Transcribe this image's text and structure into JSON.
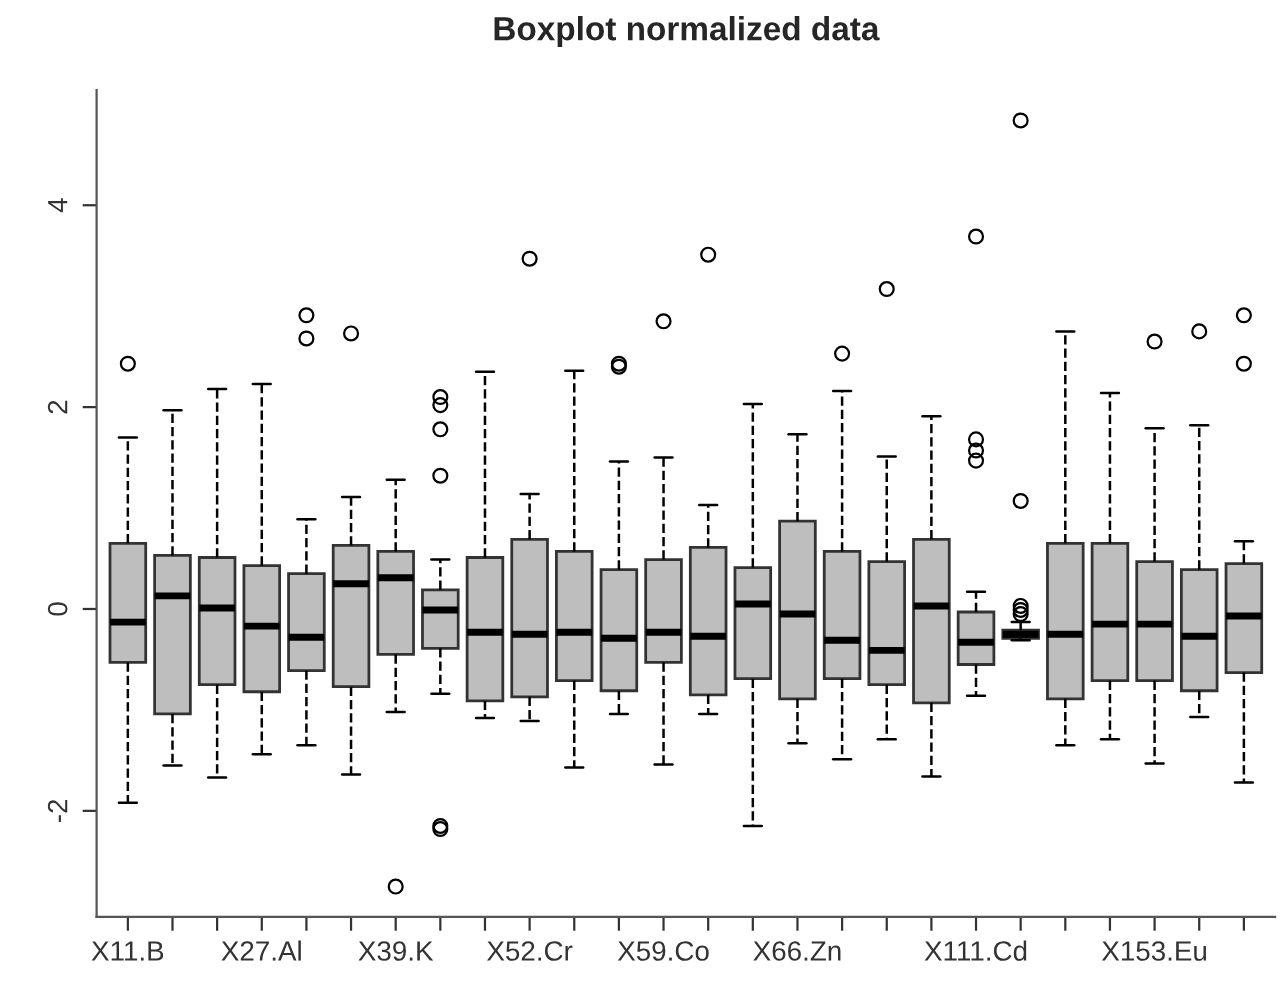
{
  "chart_data": {
    "type": "box",
    "title": "Boxplot normalized data",
    "categories": [
      "X11.B",
      null,
      null,
      "X27.Al",
      null,
      null,
      "X39.K",
      null,
      null,
      "X52.Cr",
      null,
      null,
      "X59.Co",
      null,
      null,
      "X66.Zn",
      null,
      null,
      null,
      "X111.Cd",
      null,
      null,
      null,
      "X153.Eu",
      null,
      null
    ],
    "color": "#bebebe",
    "boxes": [
      {
        "low": -1.92,
        "q1": -0.53,
        "median": -0.13,
        "q3": 0.65,
        "high": 1.7,
        "outliers": [
          2.43
        ]
      },
      {
        "low": -1.55,
        "q1": -1.04,
        "median": 0.13,
        "q3": 0.53,
        "high": 1.97
      },
      {
        "low": -1.67,
        "q1": -0.75,
        "median": 0.01,
        "q3": 0.51,
        "high": 2.18
      },
      {
        "low": -1.44,
        "q1": -0.82,
        "median": -0.17,
        "q3": 0.43,
        "high": 2.23
      },
      {
        "low": -1.35,
        "q1": -0.61,
        "median": -0.28,
        "q3": 0.35,
        "high": 0.89,
        "outliers": [
          2.91,
          2.68
        ]
      },
      {
        "low": -1.64,
        "q1": -0.77,
        "median": 0.25,
        "q3": 0.63,
        "high": 1.11,
        "outliers": [
          2.73
        ]
      },
      {
        "low": -1.02,
        "q1": -0.45,
        "median": 0.31,
        "q3": 0.57,
        "high": 1.28,
        "outliers": [
          -2.75
        ]
      },
      {
        "low": -0.84,
        "q1": -0.39,
        "median": -0.01,
        "q3": 0.19,
        "high": 0.49,
        "outliers": [
          2.1,
          2.02,
          1.78,
          1.32,
          -2.15,
          -2.18
        ]
      },
      {
        "low": -1.08,
        "q1": -0.91,
        "median": -0.23,
        "q3": 0.51,
        "high": 2.35
      },
      {
        "low": -1.11,
        "q1": -0.87,
        "median": -0.25,
        "q3": 0.69,
        "high": 1.14,
        "outliers": [
          3.47
        ]
      },
      {
        "low": -1.57,
        "q1": -0.71,
        "median": -0.23,
        "q3": 0.57,
        "high": 2.36
      },
      {
        "low": -1.04,
        "q1": -0.81,
        "median": -0.29,
        "q3": 0.39,
        "high": 1.46,
        "outliers": [
          2.43,
          2.4
        ]
      },
      {
        "low": -1.54,
        "q1": -0.53,
        "median": -0.23,
        "q3": 0.49,
        "high": 1.5,
        "outliers": [
          2.85
        ]
      },
      {
        "low": -1.04,
        "q1": -0.85,
        "median": -0.27,
        "q3": 0.61,
        "high": 1.03,
        "outliers": [
          3.51
        ]
      },
      {
        "low": -2.15,
        "q1": -0.69,
        "median": 0.05,
        "q3": 0.41,
        "high": 2.03
      },
      {
        "low": -1.33,
        "q1": -0.89,
        "median": -0.05,
        "q3": 0.87,
        "high": 1.73
      },
      {
        "low": -1.49,
        "q1": -0.69,
        "median": -0.31,
        "q3": 0.57,
        "high": 2.16,
        "outliers": [
          2.53
        ]
      },
      {
        "low": -1.29,
        "q1": -0.75,
        "median": -0.41,
        "q3": 0.47,
        "high": 1.51,
        "outliers": [
          3.17
        ]
      },
      {
        "low": -1.66,
        "q1": -0.93,
        "median": 0.03,
        "q3": 0.69,
        "high": 1.91
      },
      {
        "low": -0.86,
        "q1": -0.55,
        "median": -0.33,
        "q3": -0.03,
        "high": 0.17,
        "outliers": [
          3.69,
          1.68,
          1.57,
          1.47
        ]
      },
      {
        "low": -0.31,
        "q1": -0.29,
        "median": -0.25,
        "q3": -0.21,
        "high": -0.13,
        "outliers": [
          4.84,
          1.07,
          0.03,
          -0.01,
          -0.05
        ]
      },
      {
        "low": -1.35,
        "q1": -0.89,
        "median": -0.25,
        "q3": 0.65,
        "high": 2.75
      },
      {
        "low": -1.29,
        "q1": -0.71,
        "median": -0.15,
        "q3": 0.65,
        "high": 2.14
      },
      {
        "low": -1.53,
        "q1": -0.71,
        "median": -0.15,
        "q3": 0.47,
        "high": 1.79,
        "outliers": [
          2.65
        ]
      },
      {
        "low": -1.07,
        "q1": -0.81,
        "median": -0.27,
        "q3": 0.39,
        "high": 1.82,
        "outliers": [
          2.75
        ]
      },
      {
        "low": -1.72,
        "q1": -0.63,
        "median": -0.07,
        "q3": 0.45,
        "high": 0.67,
        "outliers": [
          2.91,
          2.43
        ]
      }
    ],
    "ylim": [
      -3.05,
      5.14
    ],
    "yticks": [
      -2,
      0,
      2,
      4
    ]
  }
}
